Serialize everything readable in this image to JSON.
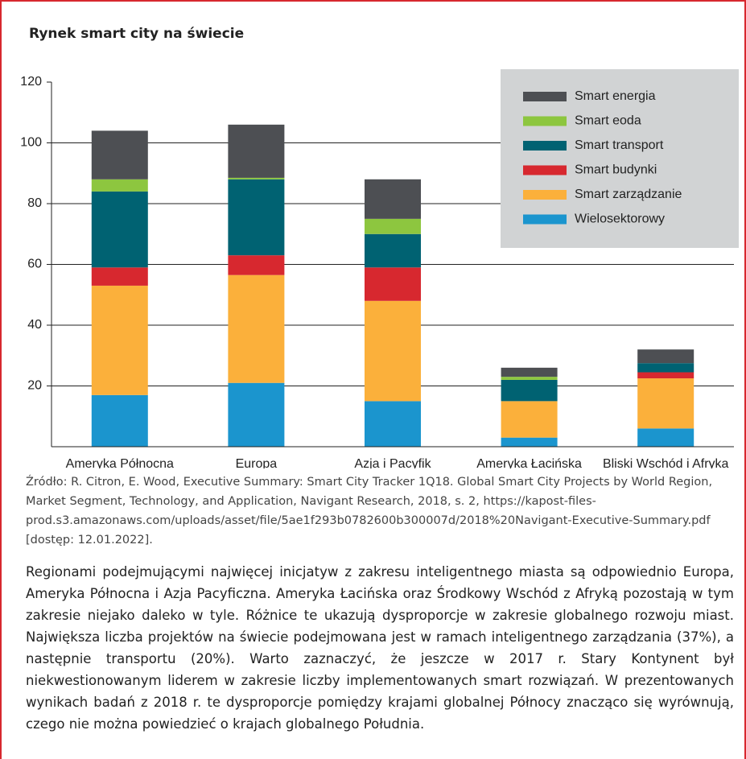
{
  "title": "Rynek smart city na świecie",
  "chart_data": {
    "type": "stacked_bar",
    "categories": [
      "Ameryka Północna",
      "Europa",
      "Azja i Pacyfik",
      "Ameryka Łacińska",
      "Bliski Wschód i Afryka"
    ],
    "series": [
      {
        "name": "Wielosektorowy",
        "color": "#1b95ce",
        "values": [
          17,
          21,
          15,
          3,
          6
        ]
      },
      {
        "name": "Smart zarządzanie",
        "color": "#fbb03b",
        "values": [
          36,
          35.5,
          33,
          12,
          16.5
        ]
      },
      {
        "name": "Smart budynki",
        "color": "#d7282f",
        "values": [
          6,
          6.5,
          11,
          0,
          2
        ]
      },
      {
        "name": "Smart transport",
        "color": "#006272",
        "values": [
          25,
          25,
          11,
          7,
          3
        ]
      },
      {
        "name": "Smart eoda",
        "color": "#8dc63f",
        "values": [
          4,
          0.5,
          5,
          1,
          0
        ]
      },
      {
        "name": "Smart energia",
        "color": "#4d4f53",
        "values": [
          16,
          17.5,
          13,
          3,
          4.5
        ]
      }
    ],
    "ylim": [
      0,
      120
    ],
    "yticks": [
      20,
      40,
      60,
      80,
      100,
      120
    ],
    "grid": true,
    "legend": "top-right"
  },
  "source": "Źródło: R. Citron, E. Wood, Executive Summary: Smart City Tracker 1Q18. Global Smart City Projects by World Region, Market Segment, Technology, and Application, Navigant Research, 2018, s. 2, https://kapost-files-prod.s3.amazonaws.com/uploads/asset/file/5ae1f293b0782600b300007d/2018%20Navigant-Executive-Summary.pdf [dostęp: 12.01.2022].",
  "paragraph": "Regionami podejmującymi najwięcej inicjatyw z zakresu inteligentnego miasta są odpowiednio Europa, Ameryka Północna i Azja Pacyficzna. Ameryka Łacińska oraz Środkowy Wschód z Afryką pozostają w tym zakresie niejako daleko w tyle. Różnice te ukazują dysproporcje w zakresie globalnego rozwoju miast. Największa liczba projektów na świecie podejmowana jest w ramach inteligentnego zarządzania (37%), a następnie transportu (20%). Warto zaznaczyć, że jeszcze w 2017 r. Stary Kontynent był niekwestionowanym liderem w zakresie liczby implementowanych smart rozwiązań. W prezentowanych wynikach badań z 2018 r. te dysproporcje pomiędzy krajami globalnej Północy znacząco się wyrównują, czego nie można powiedzieć o krajach globalnego Południa."
}
